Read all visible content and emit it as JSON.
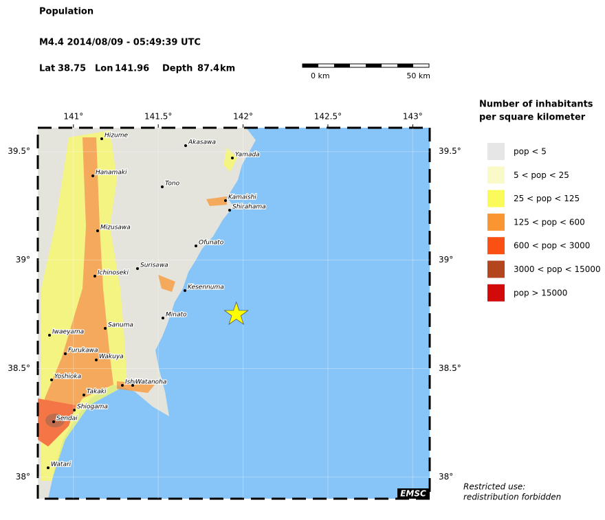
{
  "header": {
    "title": "Population",
    "event": "M4.4  2014/08/09 - 05:49:39 UTC",
    "lat_label": "Lat",
    "lat": 38.75,
    "lon_label": "Lon",
    "lon": 141.96,
    "depth_label": "Depth",
    "depth": 87.4,
    "depth_unit": "km"
  },
  "scale": {
    "start": "0 km",
    "end": "50 km"
  },
  "map": {
    "xlim": [
      140.79,
      143.1
    ],
    "ylim": [
      37.9,
      39.61
    ],
    "xticks": [
      {
        "value": 141,
        "label": "141°"
      },
      {
        "value": 141.5,
        "label": "141.5°"
      },
      {
        "value": 142,
        "label": "142°"
      },
      {
        "value": 142.5,
        "label": "142.5°"
      },
      {
        "value": 143,
        "label": "143°"
      }
    ],
    "yticks": [
      {
        "value": 38,
        "label": "38°"
      },
      {
        "value": 38.5,
        "label": "38.5°"
      },
      {
        "value": 39,
        "label": "39°"
      },
      {
        "value": 39.5,
        "label": "39.5°"
      }
    ],
    "cities": [
      "Hizume",
      "Akasawa",
      "Yamada",
      "Hanamaki",
      "Tono",
      "Kamaishi",
      "Shirahama",
      "Mizusawa",
      "Ofunato",
      "Surisawa",
      "Ichinoseki",
      "Kesennuma",
      "Minato",
      "Sanuma",
      "Iwaeyama",
      "Furukawa",
      "Wakuya",
      "Yoshioka",
      "Ishi",
      "Watanoha",
      "Takaki",
      "Shiogama",
      "Sendai",
      "Watari"
    ]
  },
  "legend": {
    "title": [
      "Number of inhabitants",
      "per square kilometer"
    ],
    "items": [
      {
        "label": "pop < 5",
        "color": "#e6e6e6"
      },
      {
        "label": "5 < pop < 25",
        "color": "#fafac8"
      },
      {
        "label": "25 < pop < 125",
        "color": "#fafa5a"
      },
      {
        "label": "125 < pop < 600",
        "color": "#fa9632"
      },
      {
        "label": "600 < pop < 3000",
        "color": "#fa5014"
      },
      {
        "label": "3000 < pop < 15000",
        "color": "#b4461e"
      },
      {
        "label": "pop > 15000",
        "color": "#d20a0a"
      }
    ]
  },
  "logo": "EMSC",
  "note": [
    "Restricted use:",
    "redistribution forbidden"
  ]
}
